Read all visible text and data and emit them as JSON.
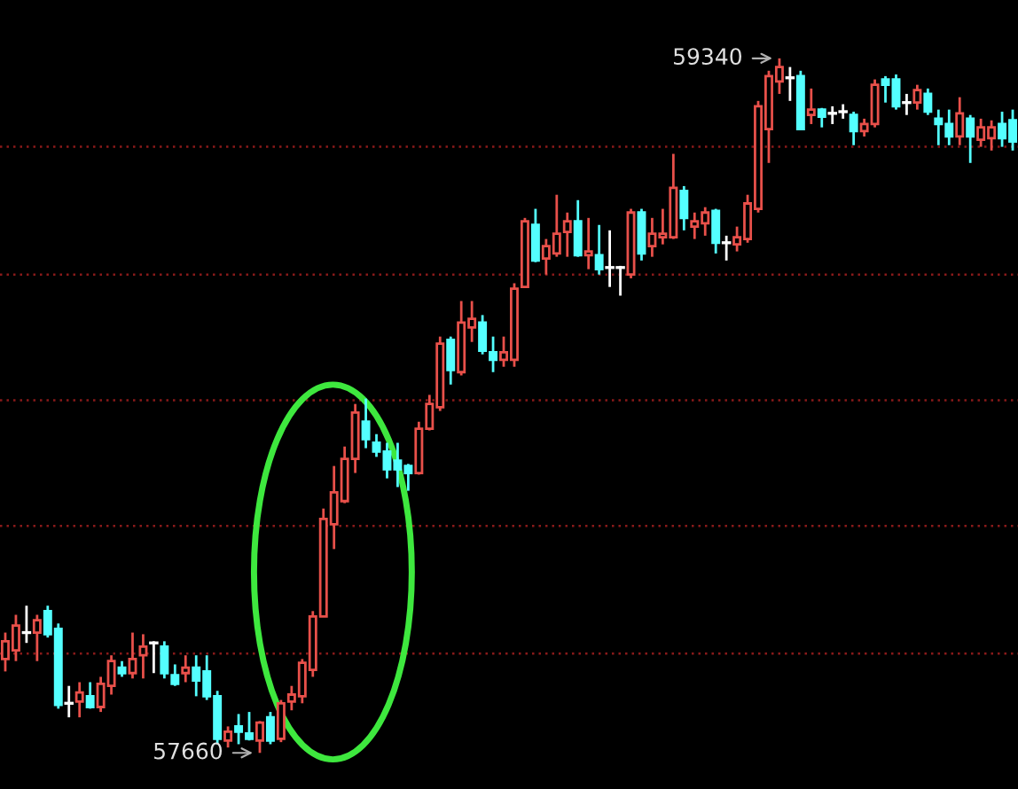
{
  "chart_data": {
    "type": "candlestick",
    "categories": [
      null,
      null,
      null,
      null,
      null,
      null,
      null,
      null,
      null,
      null,
      null,
      null,
      null,
      null,
      null,
      null,
      null,
      null,
      null,
      null,
      null,
      null,
      null,
      null,
      null,
      null,
      null,
      null,
      null,
      null,
      null,
      null,
      null,
      null,
      null,
      null,
      null,
      null,
      null,
      null,
      null,
      null,
      null,
      null,
      null,
      null,
      null,
      null,
      null,
      null,
      null,
      null,
      null,
      null,
      null,
      null,
      null,
      null,
      null,
      null,
      null,
      null,
      null,
      null,
      null,
      null,
      null,
      null,
      null,
      null,
      null,
      null,
      null,
      null,
      null,
      null,
      null,
      null,
      null,
      null,
      null,
      null,
      null,
      null,
      null,
      null,
      null,
      null,
      null,
      null,
      null,
      null,
      null,
      null,
      null,
      null
    ],
    "ohlc": [
      [
        57887,
        57951,
        57857,
        57930
      ],
      [
        57908,
        57994,
        57882,
        57968
      ],
      [
        57951,
        58016,
        57926,
        57951
      ],
      [
        57951,
        57994,
        57882,
        57981
      ],
      [
        58003,
        58016,
        57939,
        57947
      ],
      [
        57960,
        57973,
        57767,
        57776
      ],
      [
        57780,
        57822,
        57746,
        57780
      ],
      [
        57784,
        57831,
        57746,
        57806
      ],
      [
        57797,
        57831,
        57767,
        57771
      ],
      [
        57771,
        57844,
        57759,
        57827
      ],
      [
        57822,
        57896,
        57801,
        57882
      ],
      [
        57866,
        57882,
        57844,
        57853
      ],
      [
        57853,
        57951,
        57840,
        57887
      ],
      [
        57896,
        57947,
        57840,
        57917
      ],
      [
        57926,
        57930,
        57853,
        57926
      ],
      [
        57917,
        57930,
        57840,
        57853
      ],
      [
        57848,
        57874,
        57822,
        57827
      ],
      [
        57853,
        57896,
        57831,
        57866
      ],
      [
        57866,
        57896,
        57797,
        57835
      ],
      [
        57857,
        57896,
        57788,
        57797
      ],
      [
        57797,
        57810,
        57681,
        57694
      ],
      [
        57690,
        57724,
        57673,
        57711
      ],
      [
        57724,
        57754,
        57681,
        57711
      ],
      [
        57707,
        57759,
        57690,
        57694
      ],
      [
        57690,
        57737,
        57660,
        57733
      ],
      [
        57746,
        57759,
        57681,
        57690
      ],
      [
        57694,
        57788,
        57686,
        57780
      ],
      [
        57784,
        57822,
        57763,
        57801
      ],
      [
        57797,
        57887,
        57780,
        57878
      ],
      [
        57861,
        58003,
        57844,
        57990
      ],
      [
        57990,
        58251,
        57990,
        58226
      ],
      [
        58213,
        58354,
        58153,
        58290
      ],
      [
        58269,
        58401,
        58264,
        58371
      ],
      [
        58371,
        58504,
        58337,
        58483
      ],
      [
        58461,
        58517,
        58397,
        58419
      ],
      [
        58410,
        58431,
        58376,
        58389
      ],
      [
        58389,
        58410,
        58324,
        58346
      ],
      [
        58367,
        58410,
        58303,
        58346
      ],
      [
        58354,
        58359,
        58294,
        58337
      ],
      [
        58337,
        58461,
        58333,
        58444
      ],
      [
        58444,
        58526,
        58440,
        58504
      ],
      [
        58496,
        58667,
        58487,
        58650
      ],
      [
        58659,
        58667,
        58551,
        58586
      ],
      [
        58581,
        58753,
        58573,
        58701
      ],
      [
        58689,
        58753,
        58654,
        58710
      ],
      [
        58701,
        58719,
        58624,
        58633
      ],
      [
        58629,
        58667,
        58581,
        58611
      ],
      [
        58611,
        58667,
        58594,
        58629
      ],
      [
        58611,
        58796,
        58594,
        58783
      ],
      [
        58787,
        58954,
        58787,
        58946
      ],
      [
        58937,
        58976,
        58847,
        58851
      ],
      [
        58856,
        58903,
        58817,
        58886
      ],
      [
        58868,
        59010,
        58860,
        58916
      ],
      [
        58920,
        58967,
        58860,
        58946
      ],
      [
        58946,
        58997,
        58860,
        58864
      ],
      [
        58864,
        58954,
        58830,
        58873
      ],
      [
        58864,
        58937,
        58817,
        58830
      ],
      [
        58834,
        58924,
        58787,
        58834
      ],
      [
        58834,
        58838,
        58766,
        58834
      ],
      [
        58817,
        58976,
        58808,
        58967
      ],
      [
        58967,
        58976,
        58851,
        58868
      ],
      [
        58886,
        58954,
        58860,
        58916
      ],
      [
        58907,
        58976,
        58890,
        58916
      ],
      [
        58907,
        59109,
        58903,
        59027
      ],
      [
        59019,
        59031,
        58924,
        58954
      ],
      [
        58933,
        58967,
        58903,
        58946
      ],
      [
        58941,
        58980,
        58911,
        58967
      ],
      [
        58971,
        58976,
        58868,
        58894
      ],
      [
        58894,
        58911,
        58851,
        58894
      ],
      [
        58890,
        58933,
        58873,
        58907
      ],
      [
        58903,
        59010,
        58894,
        58989
      ],
      [
        58976,
        59237,
        58967,
        59224
      ],
      [
        59169,
        59310,
        59087,
        59297
      ],
      [
        59284,
        59340,
        59254,
        59319
      ],
      [
        59293,
        59319,
        59237,
        59293
      ],
      [
        59297,
        59310,
        59169,
        59169
      ],
      [
        59203,
        59267,
        59181,
        59216
      ],
      [
        59216,
        59220,
        59173,
        59199
      ],
      [
        59207,
        59224,
        59181,
        59207
      ],
      [
        59211,
        59229,
        59194,
        59211
      ],
      [
        59203,
        59211,
        59130,
        59164
      ],
      [
        59164,
        59194,
        59151,
        59181
      ],
      [
        59181,
        59289,
        59173,
        59276
      ],
      [
        59289,
        59297,
        59233,
        59276
      ],
      [
        59289,
        59301,
        59216,
        59224
      ],
      [
        59233,
        59254,
        59203,
        59233
      ],
      [
        59233,
        59276,
        59216,
        59263
      ],
      [
        59254,
        59267,
        59203,
        59211
      ],
      [
        59194,
        59216,
        59130,
        59181
      ],
      [
        59181,
        59216,
        59130,
        59151
      ],
      [
        59151,
        59246,
        59130,
        59207
      ],
      [
        59194,
        59203,
        59087,
        59151
      ],
      [
        59143,
        59194,
        59126,
        59173
      ],
      [
        59147,
        59190,
        59117,
        59173
      ],
      [
        59181,
        59211,
        59126,
        59147
      ],
      [
        59190,
        59216,
        59117,
        59139
      ]
    ],
    "colors": [
      "#e8504a",
      "#e8504a",
      "#ffffff",
      "#e8504a",
      "#54ffff",
      "#54ffff",
      "#ffffff",
      "#e8504a",
      "#54ffff",
      "#e8504a",
      "#e8504a",
      "#54ffff",
      "#e8504a",
      "#e8504a",
      "#ffffff",
      "#54ffff",
      "#54ffff",
      "#e8504a",
      "#54ffff",
      "#54ffff",
      "#54ffff",
      "#e8504a",
      "#54ffff",
      "#54ffff",
      "#e8504a",
      "#54ffff",
      "#e8504a",
      "#e8504a",
      "#e8504a",
      "#e8504a",
      "#e8504a",
      "#e8504a",
      "#e8504a",
      "#e8504a",
      "#54ffff",
      "#54ffff",
      "#54ffff",
      "#54ffff",
      "#54ffff",
      "#e8504a",
      "#e8504a",
      "#e8504a",
      "#54ffff",
      "#e8504a",
      "#e8504a",
      "#54ffff",
      "#54ffff",
      "#e8504a",
      "#e8504a",
      "#e8504a",
      "#54ffff",
      "#e8504a",
      "#e8504a",
      "#e8504a",
      "#54ffff",
      "#e8504a",
      "#54ffff",
      "#ffffff",
      "#ffffff",
      "#e8504a",
      "#54ffff",
      "#e8504a",
      "#e8504a",
      "#e8504a",
      "#54ffff",
      "#e8504a",
      "#e8504a",
      "#54ffff",
      "#ffffff",
      "#e8504a",
      "#e8504a",
      "#e8504a",
      "#e8504a",
      "#e8504a",
      "#ffffff",
      "#54ffff",
      "#e8504a",
      "#54ffff",
      "#ffffff",
      "#ffffff",
      "#54ffff",
      "#e8504a",
      "#e8504a",
      "#54ffff",
      "#54ffff",
      "#ffffff",
      "#e8504a",
      "#54ffff",
      "#54ffff",
      "#54ffff",
      "#e8504a",
      "#54ffff",
      "#e8504a",
      "#e8504a",
      "#54ffff",
      "#54ffff"
    ],
    "yticks": [
      {
        "value": 59126,
        "label": null
      },
      {
        "value": 58817,
        "label": null
      },
      {
        "value": 58513,
        "label": null
      },
      {
        "value": 58209,
        "label": null
      },
      {
        "value": 57900,
        "label": null
      }
    ],
    "grid": "y",
    "annotations": [
      "59340",
      "57660"
    ]
  }
}
